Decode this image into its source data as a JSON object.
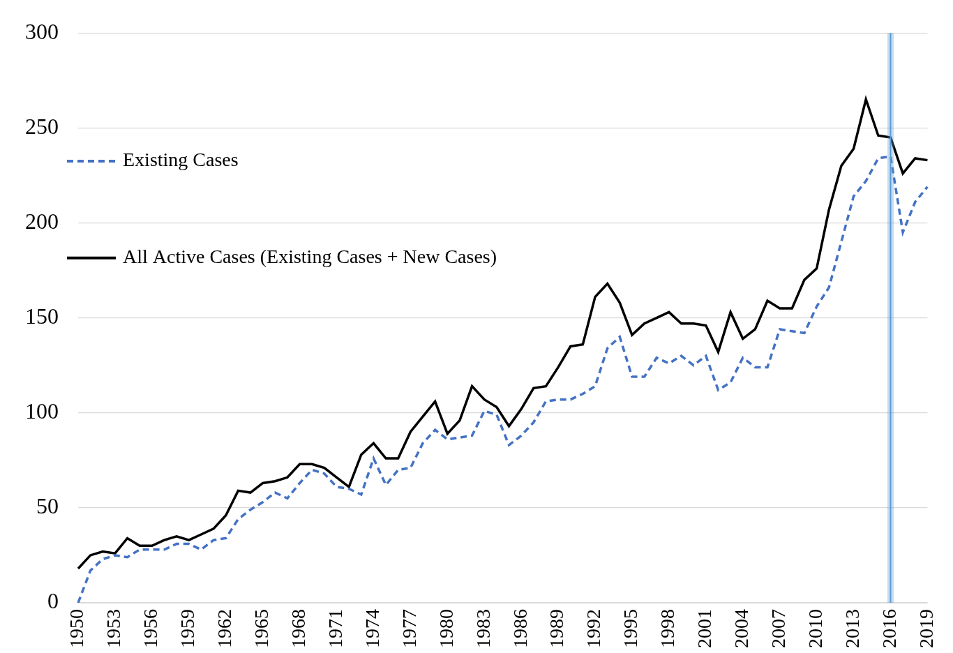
{
  "chart_data": {
    "type": "line",
    "categories": [
      "1950",
      null,
      null,
      "1953",
      null,
      null,
      "1956",
      null,
      null,
      "1959",
      null,
      null,
      "1962",
      null,
      null,
      "1965",
      null,
      null,
      "1968",
      null,
      null,
      "1971",
      null,
      null,
      "1974",
      null,
      null,
      "1977",
      null,
      null,
      "1980",
      null,
      null,
      "1983",
      null,
      null,
      "1986",
      null,
      null,
      "1989",
      null,
      null,
      "1992",
      null,
      null,
      "1995",
      null,
      null,
      "1998",
      null,
      null,
      "2001",
      null,
      null,
      "2004",
      null,
      null,
      "2007",
      null,
      null,
      "2010",
      null,
      null,
      "2013",
      null,
      null,
      "2016",
      null,
      null,
      "2019"
    ],
    "series": [
      {
        "name": "Existing Cases",
        "color": "#4472c4",
        "line_style": "dashed",
        "marker": "none",
        "values": [
          0,
          17,
          23,
          25,
          24,
          28,
          28,
          28,
          31,
          31,
          28,
          33,
          34,
          44,
          49,
          53,
          58,
          55,
          63,
          70,
          68,
          61,
          60,
          57,
          76,
          62,
          70,
          71,
          84,
          91,
          86,
          87,
          88,
          101,
          99,
          83,
          88,
          95,
          106,
          107,
          107,
          110,
          114,
          134,
          140,
          119,
          119,
          129,
          126,
          130,
          125,
          130,
          112,
          116,
          129,
          124,
          124,
          144,
          143,
          142,
          156,
          166,
          190,
          214,
          222,
          234,
          235,
          195,
          211,
          219
        ]
      },
      {
        "name": "All Active Cases (Existing Cases + New Cases)",
        "color": "#000000",
        "line_style": "solid",
        "marker": "none",
        "values": [
          18,
          25,
          27,
          26,
          34,
          30,
          30,
          33,
          35,
          33,
          36,
          39,
          46,
          59,
          58,
          63,
          64,
          66,
          73,
          73,
          71,
          66,
          61,
          78,
          84,
          76,
          76,
          90,
          98,
          106,
          89,
          96,
          114,
          107,
          103,
          93,
          102,
          113,
          114,
          124,
          135,
          136,
          161,
          168,
          158,
          141,
          147,
          150,
          153,
          147,
          147,
          146,
          132,
          153,
          139,
          144,
          159,
          155,
          155,
          170,
          176,
          207,
          230,
          239,
          265,
          246,
          245,
          226,
          234,
          233
        ]
      }
    ],
    "ylim": [
      0,
      300
    ],
    "yticks": [
      0,
      50,
      100,
      150,
      200,
      250,
      300
    ],
    "grid": "y",
    "legend": "upper left",
    "annotations": [
      {
        "x": "2016",
        "color": "#5b9bd5"
      }
    ]
  }
}
